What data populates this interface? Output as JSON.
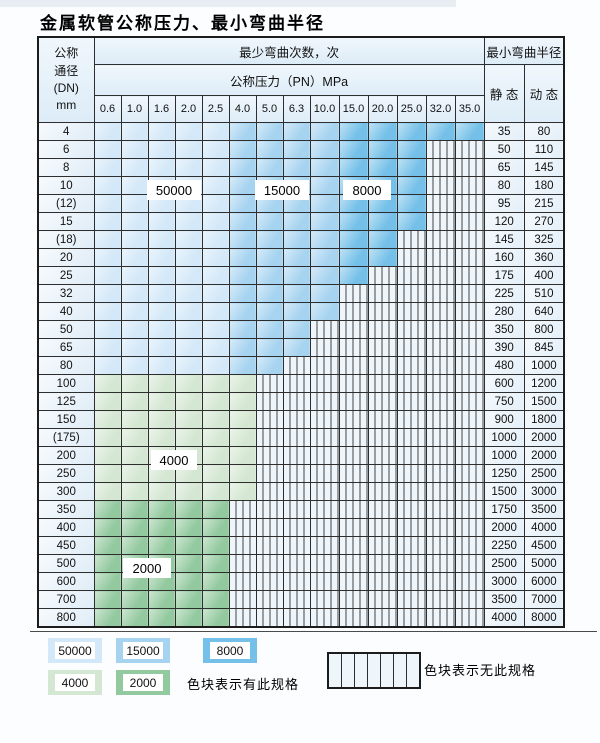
{
  "title": "金属软管公称压力、最小弯曲半径",
  "table": {
    "header": {
      "dn_lines": [
        "公称",
        "通径",
        "(DN)",
        "mm"
      ],
      "cycles_label": "最少弯曲次数，次",
      "radius_label": "最小弯曲半径",
      "pressure_label": "公称压力（PN）MPa",
      "static_label": "静 态",
      "dynamic_label": "动 态",
      "pressures": [
        "0.6",
        "1.0",
        "1.6",
        "2.0",
        "2.5",
        "4.0",
        "5.0",
        "6.3",
        "10.0",
        "15.0",
        "20.0",
        "25.0",
        "32.0",
        "35.0"
      ]
    },
    "pattern_key": {
      "A": "50000",
      "B": "15000",
      "C": "8000",
      "D": "4000",
      "E": "2000",
      ".": "none"
    },
    "rows": [
      {
        "dn": "4",
        "pattern": "AAAAABBBBCCCCC",
        "static": "35",
        "dynamic": "80"
      },
      {
        "dn": "6",
        "pattern": "AAAAABBBBCCC..",
        "static": "50",
        "dynamic": "110"
      },
      {
        "dn": "8",
        "pattern": "AAAAABBBBCCC..",
        "static": "65",
        "dynamic": "145"
      },
      {
        "dn": "10",
        "pattern": "AAAAABBBBCCC..",
        "static": "80",
        "dynamic": "180"
      },
      {
        "dn": "(12)",
        "pattern": "AAAAABBBBCCC..",
        "static": "95",
        "dynamic": "215"
      },
      {
        "dn": "15",
        "pattern": "AAAAABBBBCCC..",
        "static": "120",
        "dynamic": "270"
      },
      {
        "dn": "(18)",
        "pattern": "AAAAABBBBCC...",
        "static": "145",
        "dynamic": "325"
      },
      {
        "dn": "20",
        "pattern": "AAAAABBBBCC...",
        "static": "160",
        "dynamic": "360"
      },
      {
        "dn": "25",
        "pattern": "AAAAABBBBC....",
        "static": "175",
        "dynamic": "400"
      },
      {
        "dn": "32",
        "pattern": "AAAAABBBB.....",
        "static": "225",
        "dynamic": "510"
      },
      {
        "dn": "40",
        "pattern": "AAAAABBBB.....",
        "static": "280",
        "dynamic": "640"
      },
      {
        "dn": "50",
        "pattern": "AAAAABBB......",
        "static": "350",
        "dynamic": "800"
      },
      {
        "dn": "65",
        "pattern": "AAAAABBB......",
        "static": "390",
        "dynamic": "845"
      },
      {
        "dn": "80",
        "pattern": "AAAAABB.......",
        "static": "480",
        "dynamic": "1000"
      },
      {
        "dn": "100",
        "pattern": "DDDDDD........",
        "static": "600",
        "dynamic": "1200"
      },
      {
        "dn": "125",
        "pattern": "DDDDDD........",
        "static": "750",
        "dynamic": "1500"
      },
      {
        "dn": "150",
        "pattern": "DDDDDD........",
        "static": "900",
        "dynamic": "1800"
      },
      {
        "dn": "(175)",
        "pattern": "DDDDDD........",
        "static": "1000",
        "dynamic": "2000"
      },
      {
        "dn": "200",
        "pattern": "DDDDDD........",
        "static": "1000",
        "dynamic": "2000"
      },
      {
        "dn": "250",
        "pattern": "DDDDDD........",
        "static": "1250",
        "dynamic": "2500"
      },
      {
        "dn": "300",
        "pattern": "DDDDDD........",
        "static": "1500",
        "dynamic": "3000"
      },
      {
        "dn": "350",
        "pattern": "EEEEE.........",
        "static": "1750",
        "dynamic": "3500"
      },
      {
        "dn": "400",
        "pattern": "EEEEE.........",
        "static": "2000",
        "dynamic": "4000"
      },
      {
        "dn": "450",
        "pattern": "EEEEE.........",
        "static": "2250",
        "dynamic": "4500"
      },
      {
        "dn": "500",
        "pattern": "EEEEE.........",
        "static": "2500",
        "dynamic": "5000"
      },
      {
        "dn": "600",
        "pattern": "EEEEE.........",
        "static": "3000",
        "dynamic": "6000"
      },
      {
        "dn": "700",
        "pattern": "EEEEE.........",
        "static": "3500",
        "dynamic": "7000"
      },
      {
        "dn": "800",
        "pattern": "EEEEE.........",
        "static": "4000",
        "dynamic": "8000"
      }
    ]
  },
  "region_labels": [
    "50000",
    "15000",
    "8000",
    "4000",
    "2000"
  ],
  "legend": {
    "items": [
      {
        "value": "50000",
        "color_key": "b50000",
        "row": 1
      },
      {
        "value": "15000",
        "color_key": "b15000",
        "row": 1
      },
      {
        "value": "8000",
        "color_key": "b8000",
        "row": 1
      },
      {
        "value": "4000",
        "color_key": "b4000",
        "row": 2
      },
      {
        "value": "2000",
        "color_key": "b2000",
        "row": 2
      }
    ],
    "has_spec_note": "色块表示有此规格",
    "no_spec_note": "色块表示无此规格"
  },
  "colors": {
    "b50000": "#d3e8f8",
    "b15000": "#a6d3f0",
    "b8000": "#74c0e8",
    "b4000": "#d4e7d2",
    "b2000": "#92c99e",
    "no_spec_bg": "#eef5fb",
    "header_bg": "#e6f1f9",
    "grid": "#2e2e2e"
  }
}
